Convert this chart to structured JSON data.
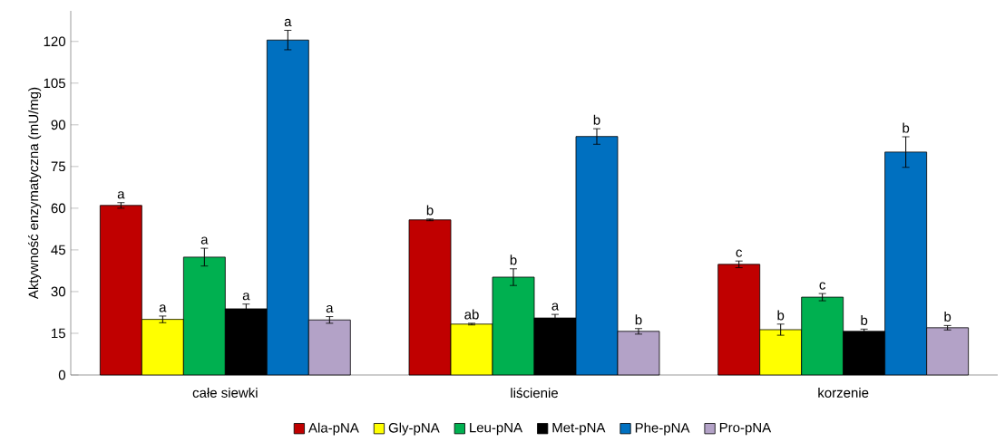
{
  "chart_data": {
    "type": "bar",
    "ylabel": "Aktywność enzymatyczna (mU/mg)",
    "categories": [
      "całe siewki",
      "liścienie",
      "korzenie"
    ],
    "series": [
      {
        "name": "Ala-pNA",
        "color": "#c00000",
        "values": [
          61,
          55.8,
          39.8
        ],
        "errors": [
          1,
          0.3,
          1.2
        ],
        "value_labels": [
          "a",
          "b",
          "c"
        ]
      },
      {
        "name": "Gly-pNA",
        "color": "#ffff00",
        "values": [
          20,
          18.3,
          16.3
        ],
        "errors": [
          1.2,
          0.3,
          2
        ],
        "value_labels": [
          "a",
          "ab",
          "b"
        ]
      },
      {
        "name": "Leu-pNA",
        "color": "#00b050",
        "values": [
          42.4,
          35.2,
          28
        ],
        "errors": [
          3.2,
          3,
          1.3
        ],
        "value_labels": [
          "a",
          "b",
          "c"
        ]
      },
      {
        "name": "Met-pNA",
        "color": "#000000",
        "values": [
          23.8,
          20.5,
          15.7
        ],
        "errors": [
          1.7,
          1.3,
          0.8
        ],
        "value_labels": [
          "a",
          "a",
          "b"
        ]
      },
      {
        "name": "Phe-pNA",
        "color": "#0070c0",
        "values": [
          120.5,
          85.8,
          80.2
        ],
        "errors": [
          3.5,
          2.8,
          5.5
        ],
        "value_labels": [
          "a",
          "b",
          "b"
        ]
      },
      {
        "name": "Pro-pNA",
        "color": "#b3a2c7",
        "values": [
          19.8,
          15.7,
          17
        ],
        "errors": [
          1.2,
          1,
          0.8
        ],
        "value_labels": [
          "a",
          "b",
          "b"
        ]
      }
    ],
    "ylim": [
      0,
      131
    ],
    "yticks": [
      0,
      15,
      30,
      45,
      60,
      75,
      90,
      105,
      120
    ],
    "legend": "bottom"
  }
}
